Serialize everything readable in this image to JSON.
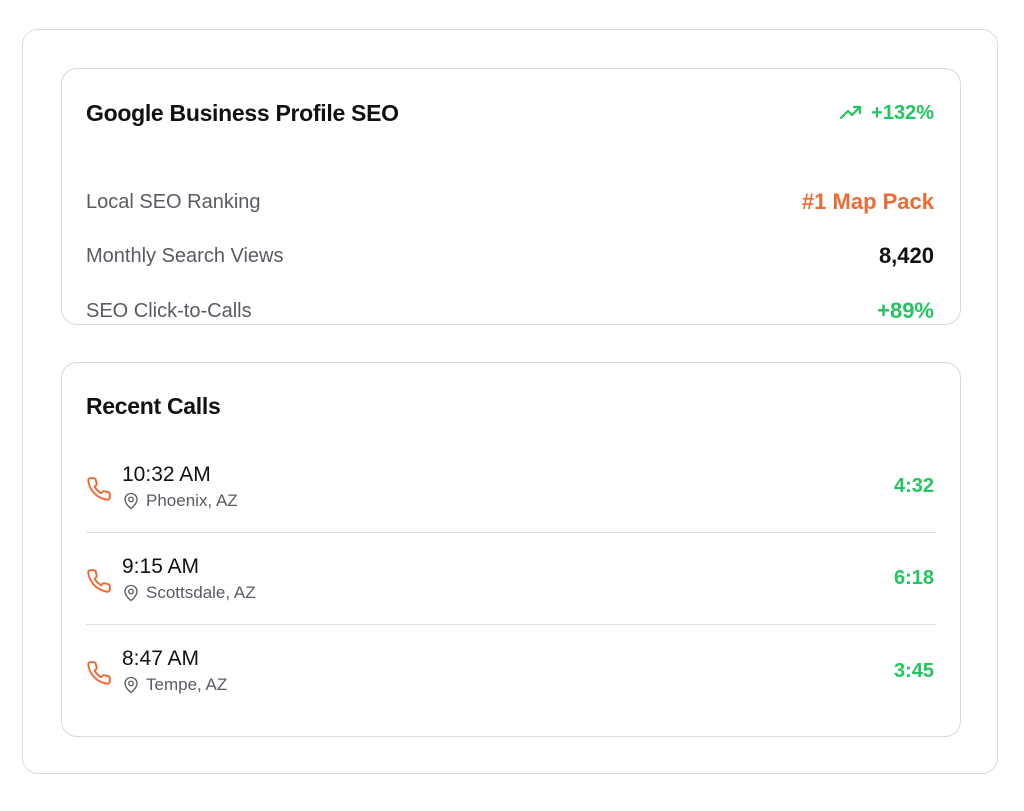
{
  "seo_card": {
    "title": "Google Business Profile SEO",
    "trend_value": "+132%",
    "trend_icon": "trending-up-icon",
    "metrics": [
      {
        "label": "Local SEO Ranking",
        "value": "#1 Map Pack",
        "color": "#ee6a32"
      },
      {
        "label": "Monthly Search Views",
        "value": "8,420",
        "color": "#111111"
      },
      {
        "label": "SEO Click-to-Calls",
        "value": "+89%",
        "color": "#22c55e"
      }
    ]
  },
  "calls_card": {
    "title": "Recent Calls",
    "calls": [
      {
        "time": "10:32 AM",
        "location": "Phoenix, AZ",
        "duration": "4:32"
      },
      {
        "time": "9:15 AM",
        "location": "Scottsdale, AZ",
        "duration": "6:18"
      },
      {
        "time": "8:47 AM",
        "location": "Tempe, AZ",
        "duration": "3:45"
      }
    ]
  },
  "colors": {
    "accent_orange": "#ee6a32",
    "accent_green": "#22c55e",
    "text_dark": "#111111",
    "text_muted": "#595b64"
  }
}
